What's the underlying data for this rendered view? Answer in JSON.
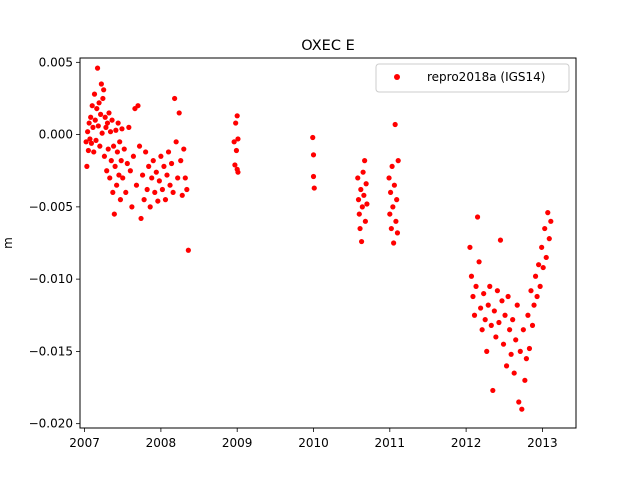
{
  "chart_data": {
    "type": "scatter",
    "title": "OXEC E",
    "xlabel": "",
    "ylabel": "m",
    "xlim": [
      2006.94,
      2013.44
    ],
    "ylim": [
      -0.0203,
      0.0053
    ],
    "x_ticks": [
      2007,
      2008,
      2009,
      2010,
      2011,
      2012,
      2013
    ],
    "y_ticks": [
      0.005,
      0.0,
      -0.005,
      -0.01,
      -0.015,
      -0.02
    ],
    "y_tick_labels": [
      "0.005",
      "0.000",
      "−0.005",
      "−0.010",
      "−0.015",
      "−0.020"
    ],
    "grid": false,
    "legend_position": "upper right",
    "series": [
      {
        "name": "repro2018a (IGS14)",
        "color": "#ff0000",
        "marker": "circle",
        "description": "daily east component",
        "points": [
          [
            2007.02,
            -0.0005
          ],
          [
            2007.03,
            -0.0022
          ],
          [
            2007.04,
            0.0002
          ],
          [
            2007.05,
            -0.0011
          ],
          [
            2007.06,
            0.0008
          ],
          [
            2007.07,
            -0.0003
          ],
          [
            2007.08,
            0.0012
          ],
          [
            2007.09,
            -0.0006
          ],
          [
            2007.1,
            0.002
          ],
          [
            2007.11,
            0.0005
          ],
          [
            2007.12,
            -0.0012
          ],
          [
            2007.13,
            0.0028
          ],
          [
            2007.14,
            0.001
          ],
          [
            2007.15,
            -0.0004
          ],
          [
            2007.16,
            0.0018
          ],
          [
            2007.17,
            0.0046
          ],
          [
            2007.18,
            0.0006
          ],
          [
            2007.19,
            0.0022
          ],
          [
            2007.2,
            -0.0008
          ],
          [
            2007.21,
            0.0014
          ],
          [
            2007.22,
            0.0035
          ],
          [
            2007.23,
            0.0001
          ],
          [
            2007.24,
            0.0025
          ],
          [
            2007.25,
            0.0031
          ],
          [
            2007.26,
            -0.0015
          ],
          [
            2007.27,
            0.0012
          ],
          [
            2007.28,
            0.0005
          ],
          [
            2007.29,
            -0.0025
          ],
          [
            2007.3,
            0.0008
          ],
          [
            2007.31,
            -0.001
          ],
          [
            2007.32,
            0.0015
          ],
          [
            2007.33,
            -0.003
          ],
          [
            2007.34,
            0.0002
          ],
          [
            2007.35,
            -0.0018
          ],
          [
            2007.36,
            0.001
          ],
          [
            2007.37,
            -0.004
          ],
          [
            2007.38,
            -0.0008
          ],
          [
            2007.39,
            -0.0055
          ],
          [
            2007.4,
            -0.0022
          ],
          [
            2007.41,
            0.0003
          ],
          [
            2007.42,
            -0.0035
          ],
          [
            2007.43,
            -0.0012
          ],
          [
            2007.44,
            0.0008
          ],
          [
            2007.45,
            -0.0028
          ],
          [
            2007.46,
            -0.0005
          ],
          [
            2007.47,
            -0.0045
          ],
          [
            2007.48,
            -0.0018
          ],
          [
            2007.49,
            0.0004
          ],
          [
            2007.5,
            -0.003
          ],
          [
            2007.52,
            -0.001
          ],
          [
            2007.54,
            -0.004
          ],
          [
            2007.56,
            -0.002
          ],
          [
            2007.58,
            0.0005
          ],
          [
            2007.6,
            -0.0025
          ],
          [
            2007.62,
            -0.005
          ],
          [
            2007.64,
            -0.0015
          ],
          [
            2007.66,
            0.0018
          ],
          [
            2007.68,
            -0.0035
          ],
          [
            2007.7,
            0.002
          ],
          [
            2007.72,
            -0.0008
          ],
          [
            2007.74,
            -0.0058
          ],
          [
            2007.76,
            -0.0028
          ],
          [
            2007.78,
            -0.0045
          ],
          [
            2007.8,
            -0.0012
          ],
          [
            2007.82,
            -0.0038
          ],
          [
            2007.84,
            -0.0022
          ],
          [
            2007.86,
            -0.005
          ],
          [
            2007.88,
            -0.003
          ],
          [
            2007.9,
            -0.0018
          ],
          [
            2007.92,
            -0.004
          ],
          [
            2007.94,
            -0.0026
          ],
          [
            2007.96,
            -0.0046
          ],
          [
            2007.98,
            -0.0032
          ],
          [
            2008.0,
            -0.0015
          ],
          [
            2008.02,
            -0.0038
          ],
          [
            2008.04,
            -0.0022
          ],
          [
            2008.06,
            -0.0045
          ],
          [
            2008.08,
            -0.0028
          ],
          [
            2008.1,
            -0.0012
          ],
          [
            2008.12,
            -0.0035
          ],
          [
            2008.14,
            -0.002
          ],
          [
            2008.16,
            -0.004
          ],
          [
            2008.18,
            0.0025
          ],
          [
            2008.2,
            -0.0005
          ],
          [
            2008.22,
            -0.003
          ],
          [
            2008.24,
            0.0015
          ],
          [
            2008.26,
            -0.0018
          ],
          [
            2008.28,
            -0.0042
          ],
          [
            2008.3,
            -0.001
          ],
          [
            2008.32,
            -0.003
          ],
          [
            2008.34,
            -0.0038
          ],
          [
            2008.36,
            -0.008
          ],
          [
            2008.96,
            -0.0005
          ],
          [
            2008.97,
            -0.0021
          ],
          [
            2008.98,
            0.0008
          ],
          [
            2008.99,
            -0.0011
          ],
          [
            2009.0,
            -0.0024
          ],
          [
            2009.0,
            0.0013
          ],
          [
            2009.01,
            -0.0003
          ],
          [
            2009.01,
            -0.0026
          ],
          [
            2009.99,
            -0.0002
          ],
          [
            2010.0,
            -0.0014
          ],
          [
            2010.0,
            -0.0029
          ],
          [
            2010.01,
            -0.0037
          ],
          [
            2010.58,
            -0.003
          ],
          [
            2010.59,
            -0.0045
          ],
          [
            2010.6,
            -0.0055
          ],
          [
            2010.61,
            -0.0065
          ],
          [
            2010.62,
            -0.0038
          ],
          [
            2010.63,
            -0.0074
          ],
          [
            2010.64,
            -0.005
          ],
          [
            2010.65,
            -0.0026
          ],
          [
            2010.66,
            -0.0042
          ],
          [
            2010.67,
            -0.0018
          ],
          [
            2010.68,
            -0.006
          ],
          [
            2010.69,
            -0.0034
          ],
          [
            2010.7,
            -0.0048
          ],
          [
            2010.99,
            -0.003
          ],
          [
            2011.0,
            -0.0055
          ],
          [
            2011.01,
            -0.004
          ],
          [
            2011.02,
            -0.0065
          ],
          [
            2011.03,
            -0.0022
          ],
          [
            2011.04,
            -0.005
          ],
          [
            2011.05,
            -0.0075
          ],
          [
            2011.06,
            -0.0035
          ],
          [
            2011.07,
            0.0007
          ],
          [
            2011.08,
            -0.006
          ],
          [
            2011.09,
            -0.0045
          ],
          [
            2011.1,
            -0.0068
          ],
          [
            2011.11,
            -0.0018
          ],
          [
            2012.05,
            -0.0078
          ],
          [
            2012.07,
            -0.0098
          ],
          [
            2012.09,
            -0.0112
          ],
          [
            2012.11,
            -0.0125
          ],
          [
            2012.13,
            -0.0105
          ],
          [
            2012.15,
            -0.0057
          ],
          [
            2012.17,
            -0.0088
          ],
          [
            2012.19,
            -0.012
          ],
          [
            2012.21,
            -0.0135
          ],
          [
            2012.23,
            -0.011
          ],
          [
            2012.25,
            -0.0128
          ],
          [
            2012.27,
            -0.015
          ],
          [
            2012.29,
            -0.0118
          ],
          [
            2012.31,
            -0.0105
          ],
          [
            2012.33,
            -0.0132
          ],
          [
            2012.35,
            -0.0177
          ],
          [
            2012.37,
            -0.0122
          ],
          [
            2012.39,
            -0.014
          ],
          [
            2012.41,
            -0.0108
          ],
          [
            2012.43,
            -0.013
          ],
          [
            2012.45,
            -0.0073
          ],
          [
            2012.47,
            -0.0115
          ],
          [
            2012.49,
            -0.0145
          ],
          [
            2012.51,
            -0.0125
          ],
          [
            2012.53,
            -0.016
          ],
          [
            2012.55,
            -0.0112
          ],
          [
            2012.57,
            -0.0135
          ],
          [
            2012.59,
            -0.0152
          ],
          [
            2012.61,
            -0.0128
          ],
          [
            2012.63,
            -0.0165
          ],
          [
            2012.65,
            -0.0142
          ],
          [
            2012.67,
            -0.0118
          ],
          [
            2012.69,
            -0.0185
          ],
          [
            2012.71,
            -0.015
          ],
          [
            2012.73,
            -0.019
          ],
          [
            2012.75,
            -0.0135
          ],
          [
            2012.77,
            -0.017
          ],
          [
            2012.79,
            -0.0155
          ],
          [
            2012.81,
            -0.0125
          ],
          [
            2012.83,
            -0.0148
          ],
          [
            2012.85,
            -0.0108
          ],
          [
            2012.87,
            -0.0132
          ],
          [
            2012.89,
            -0.0118
          ],
          [
            2012.91,
            -0.0098
          ],
          [
            2012.93,
            -0.0112
          ],
          [
            2012.95,
            -0.009
          ],
          [
            2012.97,
            -0.0105
          ],
          [
            2012.99,
            -0.0078
          ],
          [
            2013.01,
            -0.0092
          ],
          [
            2013.03,
            -0.0065
          ],
          [
            2013.05,
            -0.0085
          ],
          [
            2013.07,
            -0.0054
          ],
          [
            2013.09,
            -0.0072
          ],
          [
            2013.11,
            -0.006
          ]
        ]
      }
    ]
  }
}
